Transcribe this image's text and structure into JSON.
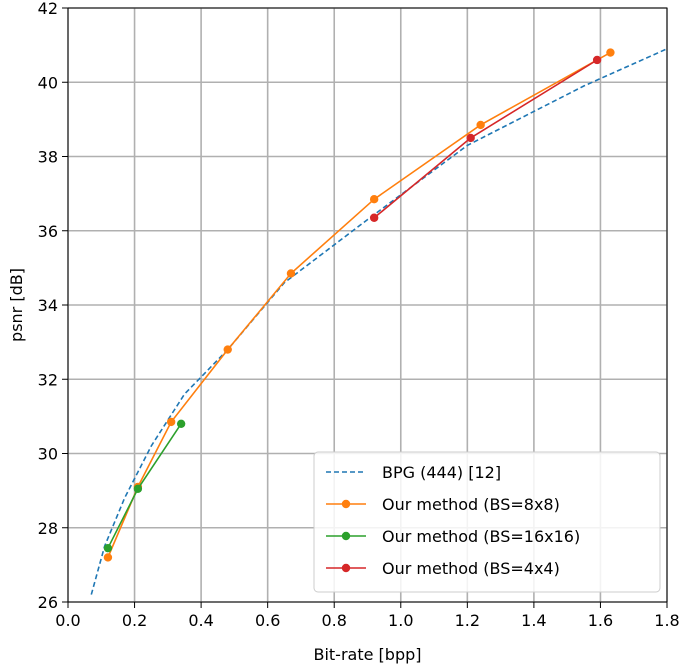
{
  "chart_data": {
    "type": "line",
    "title": "",
    "xlabel": "Bit-rate [bpp]",
    "ylabel": "psnr [dB]",
    "xlim": [
      0.0,
      1.8
    ],
    "ylim": [
      26,
      42
    ],
    "xticks": [
      "0.0",
      "0.2",
      "0.4",
      "0.6",
      "0.8",
      "1.0",
      "1.2",
      "1.4",
      "1.6",
      "1.8"
    ],
    "yticks": [
      "26",
      "28",
      "30",
      "32",
      "34",
      "36",
      "38",
      "40",
      "42"
    ],
    "grid": true,
    "legend_position": "lower-right",
    "series": [
      {
        "name": "BPG (444) [12]",
        "color": "#1f77b4",
        "style": "dashed",
        "markers": false,
        "x": [
          0.07,
          0.11,
          0.17,
          0.25,
          0.35,
          0.48,
          0.65,
          0.9,
          1.2,
          1.55,
          1.8
        ],
        "y": [
          26.2,
          27.5,
          28.8,
          30.2,
          31.6,
          32.8,
          34.6,
          36.3,
          38.3,
          39.9,
          40.9
        ]
      },
      {
        "name": "Our method (BS=8x8)",
        "color": "#ff7f0e",
        "style": "solid",
        "markers": true,
        "x": [
          0.12,
          0.21,
          0.31,
          0.48,
          0.67,
          0.92,
          1.24,
          1.63
        ],
        "y": [
          27.2,
          29.1,
          30.85,
          32.8,
          34.85,
          36.85,
          38.85,
          40.8
        ]
      },
      {
        "name": "Our method (BS=16x16)",
        "color": "#2ca02c",
        "style": "solid",
        "markers": true,
        "x": [
          0.12,
          0.21,
          0.34
        ],
        "y": [
          27.45,
          29.05,
          30.8
        ]
      },
      {
        "name": "Our method (BS=4x4)",
        "color": "#d62728",
        "style": "solid",
        "markers": true,
        "x": [
          0.92,
          1.21,
          1.59
        ],
        "y": [
          36.35,
          38.5,
          40.6
        ]
      }
    ]
  }
}
